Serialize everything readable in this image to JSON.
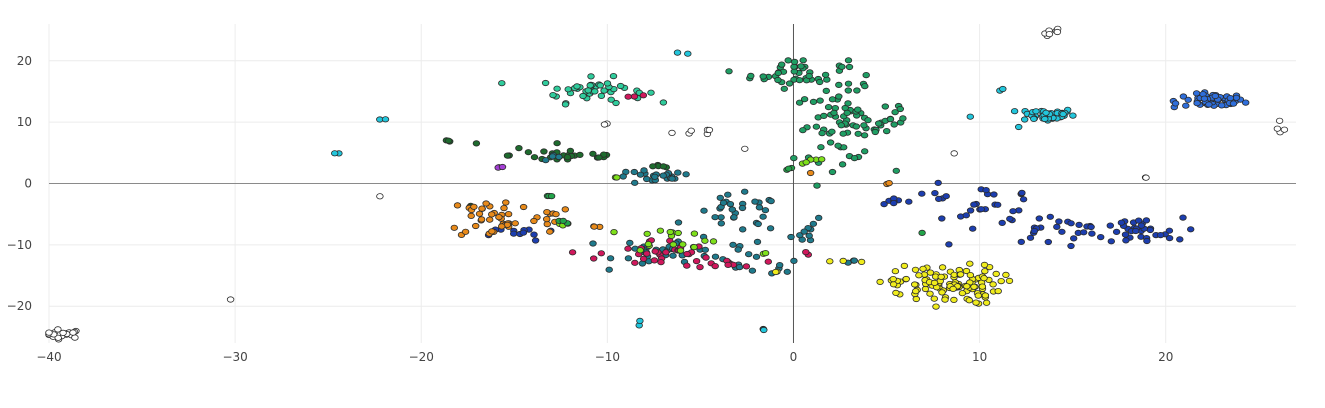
{
  "chart_data": {
    "type": "scatter",
    "title": "",
    "xlabel": "",
    "ylabel": "",
    "xlim": [
      -40,
      27
    ],
    "ylim": [
      -26,
      26
    ],
    "x_ticks": [
      -40,
      -30,
      -20,
      -10,
      0,
      10,
      20
    ],
    "y_ticks": [
      -20,
      -10,
      0,
      10,
      20
    ],
    "x_tick_labels": [
      "−40",
      "−30",
      "−20",
      "−10",
      "0",
      "10",
      "20"
    ],
    "y_tick_labels": [
      "−20",
      "−10",
      "0",
      "10",
      "20"
    ],
    "grid": true,
    "legend": "none",
    "series": [
      {
        "color": "#ffffff",
        "clusters": [
          {
            "cx": -39.3,
            "cy": -24.5,
            "sx": 0.6,
            "sy": 0.35,
            "n": 28
          },
          {
            "cx": 14.0,
            "cy": 24.6,
            "sx": 0.3,
            "sy": 0.4,
            "n": 7
          },
          {
            "cx": 26.3,
            "cy": 9.0,
            "sx": 0.15,
            "sy": 0.8,
            "n": 4
          },
          {
            "cx": -5.5,
            "cy": 8.3,
            "sx": 0.6,
            "sy": 0.3,
            "n": 6
          },
          {
            "cx": -10.0,
            "cy": 9.7,
            "sx": 0.1,
            "sy": 0.1,
            "n": 2
          },
          {
            "cx": -2.6,
            "cy": 5.6,
            "sx": 0.05,
            "sy": 0.05,
            "n": 1
          },
          {
            "cx": 8.6,
            "cy": 5.0,
            "sx": 0.05,
            "sy": 0.05,
            "n": 1
          },
          {
            "cx": 19.0,
            "cy": 1.0,
            "sx": 0.1,
            "sy": 0.05,
            "n": 2
          },
          {
            "cx": -22.2,
            "cy": -2.1,
            "sx": 0.05,
            "sy": 0.05,
            "n": 1
          },
          {
            "cx": -30.2,
            "cy": -18.9,
            "sx": 0.05,
            "sy": 0.05,
            "n": 1
          }
        ]
      },
      {
        "color": "#2f6fdc",
        "clusters": [
          {
            "cx": 22.6,
            "cy": 13.5,
            "sx": 0.8,
            "sy": 0.55,
            "n": 55
          },
          {
            "cx": 20.5,
            "cy": 13.2,
            "sx": 0.15,
            "sy": 0.6,
            "n": 3
          }
        ]
      },
      {
        "color": "#22c6dc",
        "clusters": [
          {
            "cx": 13.6,
            "cy": 11.2,
            "sx": 0.75,
            "sy": 0.55,
            "n": 45
          },
          {
            "cx": -22.0,
            "cy": 10.4,
            "sx": 0.25,
            "sy": 0.1,
            "n": 2
          },
          {
            "cx": -24.0,
            "cy": 5.0,
            "sx": 0.3,
            "sy": 0.1,
            "n": 2
          },
          {
            "cx": -5.8,
            "cy": 21.3,
            "sx": 0.25,
            "sy": 0.1,
            "n": 2
          },
          {
            "cx": 9.5,
            "cy": 10.9,
            "sx": 0.05,
            "sy": 0.05,
            "n": 1
          },
          {
            "cx": 11.2,
            "cy": 15.4,
            "sx": 0.1,
            "sy": 0.2,
            "n": 2
          },
          {
            "cx": 12.1,
            "cy": 9.2,
            "sx": 0.05,
            "sy": 0.05,
            "n": 1
          },
          {
            "cx": -8.4,
            "cy": -23.0,
            "sx": 0.1,
            "sy": 0.4,
            "n": 2
          },
          {
            "cx": -1.6,
            "cy": -23.5,
            "sx": 0.1,
            "sy": 0.4,
            "n": 3
          }
        ]
      },
      {
        "color": "#2fcc9c",
        "clusters": [
          {
            "cx": -10.8,
            "cy": 15.2,
            "sx": 1.4,
            "sy": 1.0,
            "n": 45
          }
        ]
      },
      {
        "color": "#1f9e64",
        "clusters": [
          {
            "cx": 0.3,
            "cy": 18.0,
            "sx": 1.3,
            "sy": 1.2,
            "n": 45
          },
          {
            "cx": 2.6,
            "cy": 9.5,
            "sx": 1.3,
            "sy": 2.9,
            "n": 70
          },
          {
            "cx": 4.8,
            "cy": 10.5,
            "sx": 0.9,
            "sy": 2.0,
            "n": 15
          }
        ]
      },
      {
        "color": "#1e6b2e",
        "clusters": [
          {
            "cx": -12.0,
            "cy": 4.6,
            "sx": 1.6,
            "sy": 0.6,
            "n": 28
          },
          {
            "cx": -18.5,
            "cy": 7.0,
            "sx": 0.2,
            "sy": 0.1,
            "n": 3
          },
          {
            "cx": -17.0,
            "cy": 6.5,
            "sx": 0.05,
            "sy": 0.05,
            "n": 1
          },
          {
            "cx": -14.8,
            "cy": 5.7,
            "sx": 0.05,
            "sy": 0.05,
            "n": 1
          },
          {
            "cx": -7.2,
            "cy": 2.8,
            "sx": 0.4,
            "sy": 0.1,
            "n": 5
          },
          {
            "cx": -17.5,
            "cy": -3.8,
            "sx": 0.1,
            "sy": 0.1,
            "n": 2
          }
        ]
      },
      {
        "color": "#1f7a8c",
        "clusters": [
          {
            "cx": -7.5,
            "cy": 1.0,
            "sx": 1.1,
            "sy": 0.6,
            "n": 25
          },
          {
            "cx": -3.0,
            "cy": -5.0,
            "sx": 1.2,
            "sy": 1.5,
            "n": 30
          },
          {
            "cx": -6.5,
            "cy": -11.0,
            "sx": 1.5,
            "sy": 1.2,
            "n": 32
          },
          {
            "cx": -3.0,
            "cy": -11.5,
            "sx": 0.8,
            "sy": 1.5,
            "n": 12
          },
          {
            "cx": 1.0,
            "cy": -8.0,
            "sx": 0.6,
            "sy": 1.0,
            "n": 10
          },
          {
            "cx": -0.5,
            "cy": -13.0,
            "sx": 0.4,
            "sy": 0.8,
            "n": 5
          },
          {
            "cx": 3.2,
            "cy": -12.7,
            "sx": 0.2,
            "sy": 0.1,
            "n": 3
          },
          {
            "cx": -12.6,
            "cy": 4.2,
            "sx": 0.5,
            "sy": 0.3,
            "n": 4
          }
        ]
      },
      {
        "color": "#1c3eb0",
        "clusters": [
          {
            "cx": 9.5,
            "cy": -3.5,
            "sx": 2.0,
            "sy": 1.6,
            "n": 30
          },
          {
            "cx": 14.0,
            "cy": -7.5,
            "sx": 1.5,
            "sy": 1.2,
            "n": 25
          },
          {
            "cx": 18.3,
            "cy": -8.0,
            "sx": 1.3,
            "sy": 1.2,
            "n": 35
          },
          {
            "cx": -14.5,
            "cy": -8.2,
            "sx": 0.9,
            "sy": 0.6,
            "n": 12
          },
          {
            "cx": 5.5,
            "cy": -2.8,
            "sx": 0.4,
            "sy": 0.4,
            "n": 6
          },
          {
            "cx": 12.3,
            "cy": -1.7,
            "sx": 0.2,
            "sy": 0.3,
            "n": 3
          }
        ]
      },
      {
        "color": "#e88a1a",
        "clusters": [
          {
            "cx": -16.0,
            "cy": -5.5,
            "sx": 1.3,
            "sy": 1.8,
            "n": 40
          },
          {
            "cx": -13.0,
            "cy": -5.0,
            "sx": 0.5,
            "sy": 1.0,
            "n": 8
          },
          {
            "cx": -10.5,
            "cy": -7.0,
            "sx": 0.2,
            "sy": 0.1,
            "n": 3
          },
          {
            "cx": 5.2,
            "cy": 0.0,
            "sx": 0.15,
            "sy": 0.05,
            "n": 2
          },
          {
            "cx": 0.9,
            "cy": 1.7,
            "sx": 0.05,
            "sy": 0.05,
            "n": 1
          }
        ]
      },
      {
        "color": "#d0185c",
        "clusters": [
          {
            "cx": -7.5,
            "cy": -11.5,
            "sx": 1.5,
            "sy": 1.2,
            "n": 28
          },
          {
            "cx": -3.5,
            "cy": -12.8,
            "sx": 0.9,
            "sy": 0.5,
            "n": 12
          },
          {
            "cx": -8.5,
            "cy": 14.3,
            "sx": 0.2,
            "sy": 0.1,
            "n": 3
          },
          {
            "cx": 0.8,
            "cy": -11.5,
            "sx": 0.1,
            "sy": 0.3,
            "n": 2
          }
        ]
      },
      {
        "color": "#7ee01a",
        "clusters": [
          {
            "cx": -6.5,
            "cy": -9.0,
            "sx": 1.2,
            "sy": 1.0,
            "n": 18
          },
          {
            "cx": -12.5,
            "cy": -6.5,
            "sx": 0.3,
            "sy": 0.3,
            "n": 3
          },
          {
            "cx": -1.8,
            "cy": -11.5,
            "sx": 0.3,
            "sy": 0.3,
            "n": 2
          },
          {
            "cx": 1.0,
            "cy": 3.5,
            "sx": 0.5,
            "sy": 0.4,
            "n": 5
          },
          {
            "cx": -9.5,
            "cy": 1.0,
            "sx": 0.1,
            "sy": 0.05,
            "n": 2
          }
        ]
      },
      {
        "color": "#22a44a",
        "clusters": [
          {
            "cx": -12.5,
            "cy": -6.3,
            "sx": 0.3,
            "sy": 0.3,
            "n": 3
          },
          {
            "cx": -13.2,
            "cy": -2.0,
            "sx": 0.2,
            "sy": 0.05,
            "n": 3
          },
          {
            "cx": -0.3,
            "cy": 2.3,
            "sx": 0.3,
            "sy": 0.1,
            "n": 3
          },
          {
            "cx": 6.9,
            "cy": -8.0,
            "sx": 0.05,
            "sy": 0.05,
            "n": 1
          }
        ]
      },
      {
        "color": "#f0ec1c",
        "clusters": [
          {
            "cx": 8.3,
            "cy": -16.5,
            "sx": 1.4,
            "sy": 1.6,
            "n": 110
          },
          {
            "cx": 3.3,
            "cy": -12.7,
            "sx": 0.6,
            "sy": 0.1,
            "n": 3
          },
          {
            "cx": -1.0,
            "cy": -14.5,
            "sx": 0.1,
            "sy": 0.3,
            "n": 2
          },
          {
            "cx": 5.7,
            "cy": -17.5,
            "sx": 0.5,
            "sy": 1.0,
            "n": 6
          }
        ]
      },
      {
        "color": "#a33ed4",
        "clusters": [
          {
            "cx": -15.8,
            "cy": 2.6,
            "sx": 0.2,
            "sy": 0.05,
            "n": 3
          }
        ]
      }
    ]
  }
}
